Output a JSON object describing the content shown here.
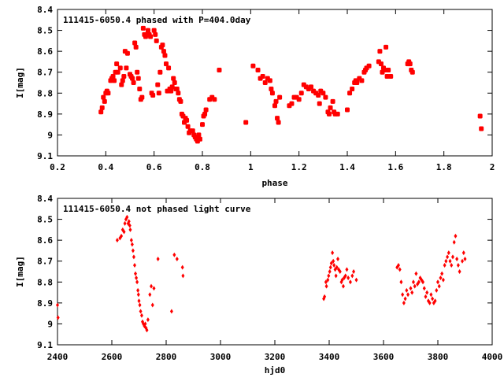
{
  "chart_data": [
    {
      "type": "scatter",
      "title": "111415-6050.4 phased with P=404.0day",
      "xlabel": "phase",
      "ylabel": "I[mag]",
      "xlim": [
        0.2,
        2.0
      ],
      "ylim": [
        8.4,
        9.1
      ],
      "y_inverted": true,
      "grid": false,
      "marker_color": "#ff0000",
      "xticks": [
        "0.2",
        "0.4",
        "0.6",
        "0.8",
        "1",
        "1.2",
        "1.4",
        "1.6",
        "1.8",
        "2"
      ],
      "xtick_values": [
        0.2,
        0.4,
        0.6,
        0.8,
        1.0,
        1.2,
        1.4,
        1.6,
        1.8,
        2.0
      ],
      "yticks": [
        "8.4",
        "8.5",
        "8.6",
        "8.7",
        "8.8",
        "8.9",
        "9",
        "9.1"
      ],
      "ytick_values": [
        8.4,
        8.5,
        8.6,
        8.7,
        8.8,
        8.9,
        9.0,
        9.1
      ],
      "points": [
        [
          0.38,
          8.89
        ],
        [
          0.385,
          8.87
        ],
        [
          0.39,
          8.82
        ],
        [
          0.395,
          8.84
        ],
        [
          0.4,
          8.8
        ],
        [
          0.405,
          8.79
        ],
        [
          0.41,
          8.8
        ],
        [
          0.42,
          8.74
        ],
        [
          0.425,
          8.73
        ],
        [
          0.43,
          8.72
        ],
        [
          0.435,
          8.74
        ],
        [
          0.44,
          8.7
        ],
        [
          0.445,
          8.66
        ],
        [
          0.45,
          8.7
        ],
        [
          0.46,
          8.68
        ],
        [
          0.465,
          8.76
        ],
        [
          0.47,
          8.74
        ],
        [
          0.475,
          8.72
        ],
        [
          0.48,
          8.6
        ],
        [
          0.485,
          8.68
        ],
        [
          0.49,
          8.61
        ],
        [
          0.5,
          8.71
        ],
        [
          0.505,
          8.72
        ],
        [
          0.51,
          8.73
        ],
        [
          0.515,
          8.75
        ],
        [
          0.52,
          8.56
        ],
        [
          0.525,
          8.58
        ],
        [
          0.53,
          8.7
        ],
        [
          0.535,
          8.73
        ],
        [
          0.54,
          8.78
        ],
        [
          0.545,
          8.83
        ],
        [
          0.55,
          8.82
        ],
        [
          0.555,
          8.49
        ],
        [
          0.56,
          8.52
        ],
        [
          0.565,
          8.53
        ],
        [
          0.57,
          8.52
        ],
        [
          0.575,
          8.5
        ],
        [
          0.58,
          8.52
        ],
        [
          0.585,
          8.53
        ],
        [
          0.59,
          8.8
        ],
        [
          0.595,
          8.81
        ],
        [
          0.6,
          8.5
        ],
        [
          0.605,
          8.52
        ],
        [
          0.61,
          8.55
        ],
        [
          0.615,
          8.76
        ],
        [
          0.62,
          8.8
        ],
        [
          0.625,
          8.7
        ],
        [
          0.63,
          8.58
        ],
        [
          0.635,
          8.57
        ],
        [
          0.64,
          8.6
        ],
        [
          0.645,
          8.62
        ],
        [
          0.65,
          8.66
        ],
        [
          0.655,
          8.79
        ],
        [
          0.66,
          8.68
        ],
        [
          0.665,
          8.78
        ],
        [
          0.67,
          8.79
        ],
        [
          0.675,
          8.77
        ],
        [
          0.68,
          8.73
        ],
        [
          0.685,
          8.75
        ],
        [
          0.69,
          8.78
        ],
        [
          0.695,
          8.78
        ],
        [
          0.7,
          8.8
        ],
        [
          0.705,
          8.83
        ],
        [
          0.71,
          8.84
        ],
        [
          0.715,
          8.9
        ],
        [
          0.72,
          8.91
        ],
        [
          0.725,
          8.94
        ],
        [
          0.73,
          8.92
        ],
        [
          0.735,
          8.93
        ],
        [
          0.74,
          8.96
        ],
        [
          0.745,
          8.99
        ],
        [
          0.75,
          8.98
        ],
        [
          0.76,
          8.98
        ],
        [
          0.765,
          9.0
        ],
        [
          0.77,
          9.01
        ],
        [
          0.775,
          9.02
        ],
        [
          0.78,
          9.03
        ],
        [
          0.785,
          9.0
        ],
        [
          0.79,
          9.02
        ],
        [
          0.8,
          8.95
        ],
        [
          0.805,
          8.91
        ],
        [
          0.81,
          8.9
        ],
        [
          0.815,
          8.88
        ],
        [
          0.83,
          8.83
        ],
        [
          0.84,
          8.82
        ],
        [
          0.85,
          8.83
        ],
        [
          0.87,
          8.69
        ],
        [
          0.98,
          8.94
        ],
        [
          1.01,
          8.67
        ],
        [
          1.03,
          8.69
        ],
        [
          1.04,
          8.73
        ],
        [
          1.05,
          8.72
        ],
        [
          1.06,
          8.75
        ],
        [
          1.07,
          8.73
        ],
        [
          1.08,
          8.74
        ],
        [
          1.085,
          8.78
        ],
        [
          1.09,
          8.8
        ],
        [
          1.1,
          8.86
        ],
        [
          1.105,
          8.84
        ],
        [
          1.11,
          8.92
        ],
        [
          1.115,
          8.94
        ],
        [
          1.12,
          8.82
        ],
        [
          1.16,
          8.86
        ],
        [
          1.17,
          8.85
        ],
        [
          1.18,
          8.82
        ],
        [
          1.19,
          8.82
        ],
        [
          1.2,
          8.83
        ],
        [
          1.21,
          8.8
        ],
        [
          1.22,
          8.76
        ],
        [
          1.23,
          8.77
        ],
        [
          1.24,
          8.78
        ],
        [
          1.25,
          8.77
        ],
        [
          1.26,
          8.79
        ],
        [
          1.27,
          8.8
        ],
        [
          1.28,
          8.81
        ],
        [
          1.285,
          8.85
        ],
        [
          1.29,
          8.79
        ],
        [
          1.3,
          8.8
        ],
        [
          1.31,
          8.82
        ],
        [
          1.32,
          8.89
        ],
        [
          1.325,
          8.9
        ],
        [
          1.33,
          8.87
        ],
        [
          1.34,
          8.84
        ],
        [
          1.345,
          8.89
        ],
        [
          1.35,
          8.9
        ],
        [
          1.36,
          8.9
        ],
        [
          1.4,
          8.88
        ],
        [
          1.41,
          8.8
        ],
        [
          1.42,
          8.78
        ],
        [
          1.43,
          8.75
        ],
        [
          1.435,
          8.74
        ],
        [
          1.44,
          8.75
        ],
        [
          1.45,
          8.73
        ],
        [
          1.46,
          8.74
        ],
        [
          1.47,
          8.7
        ],
        [
          1.475,
          8.69
        ],
        [
          1.48,
          8.68
        ],
        [
          1.49,
          8.67
        ],
        [
          1.53,
          8.65
        ],
        [
          1.535,
          8.6
        ],
        [
          1.54,
          8.66
        ],
        [
          1.545,
          8.7
        ],
        [
          1.55,
          8.68
        ],
        [
          1.555,
          8.69
        ],
        [
          1.56,
          8.58
        ],
        [
          1.565,
          8.72
        ],
        [
          1.57,
          8.69
        ],
        [
          1.58,
          8.72
        ],
        [
          1.65,
          8.66
        ],
        [
          1.655,
          8.65
        ],
        [
          1.66,
          8.66
        ],
        [
          1.665,
          8.69
        ],
        [
          1.67,
          8.7
        ],
        [
          1.95,
          8.91
        ],
        [
          1.955,
          8.97
        ]
      ]
    },
    {
      "type": "scatter",
      "title": "111415-6050.4 not phased light curve",
      "xlabel": "hjd0",
      "ylabel": "I[mag]",
      "xlim": [
        2400,
        4000
      ],
      "ylim": [
        8.4,
        9.1
      ],
      "y_inverted": true,
      "grid": false,
      "marker_color": "#ff0000",
      "xticks": [
        "2400",
        "2600",
        "2800",
        "3000",
        "3200",
        "3400",
        "3600",
        "3800",
        "4000"
      ],
      "xtick_values": [
        2400,
        2600,
        2800,
        3000,
        3200,
        3400,
        3600,
        3800,
        4000
      ],
      "yticks": [
        "8.4",
        "8.5",
        "8.6",
        "8.7",
        "8.8",
        "8.9",
        "9",
        "9.1"
      ],
      "ytick_values": [
        8.4,
        8.5,
        8.6,
        8.7,
        8.8,
        8.9,
        9.0,
        9.1
      ],
      "points": [
        [
          2400,
          8.91
        ],
        [
          2402,
          8.97
        ],
        [
          2620,
          8.6
        ],
        [
          2630,
          8.59
        ],
        [
          2635,
          8.58
        ],
        [
          2640,
          8.55
        ],
        [
          2645,
          8.56
        ],
        [
          2648,
          8.52
        ],
        [
          2652,
          8.5
        ],
        [
          2656,
          8.49
        ],
        [
          2660,
          8.52
        ],
        [
          2663,
          8.51
        ],
        [
          2666,
          8.53
        ],
        [
          2668,
          8.55
        ],
        [
          2672,
          8.6
        ],
        [
          2675,
          8.62
        ],
        [
          2678,
          8.65
        ],
        [
          2681,
          8.68
        ],
        [
          2684,
          8.72
        ],
        [
          2687,
          8.76
        ],
        [
          2690,
          8.78
        ],
        [
          2693,
          8.8
        ],
        [
          2696,
          8.84
        ],
        [
          2698,
          8.86
        ],
        [
          2700,
          8.89
        ],
        [
          2703,
          8.91
        ],
        [
          2706,
          8.94
        ],
        [
          2710,
          8.96
        ],
        [
          2713,
          8.99
        ],
        [
          2716,
          9.0
        ],
        [
          2720,
          9.01
        ],
        [
          2723,
          9.0
        ],
        [
          2726,
          9.02
        ],
        [
          2729,
          9.03
        ],
        [
          2733,
          8.98
        ],
        [
          2740,
          8.86
        ],
        [
          2745,
          8.82
        ],
        [
          2750,
          8.91
        ],
        [
          2755,
          8.83
        ],
        [
          2770,
          8.69
        ],
        [
          2820,
          8.94
        ],
        [
          2830,
          8.67
        ],
        [
          2840,
          8.69
        ],
        [
          2860,
          8.73
        ],
        [
          2862,
          8.77
        ],
        [
          3380,
          8.88
        ],
        [
          3383,
          8.87
        ],
        [
          3388,
          8.8
        ],
        [
          3390,
          8.82
        ],
        [
          3395,
          8.79
        ],
        [
          3398,
          8.77
        ],
        [
          3402,
          8.75
        ],
        [
          3405,
          8.73
        ],
        [
          3408,
          8.71
        ],
        [
          3412,
          8.66
        ],
        [
          3415,
          8.7
        ],
        [
          3418,
          8.72
        ],
        [
          3422,
          8.74
        ],
        [
          3425,
          8.77
        ],
        [
          3428,
          8.73
        ],
        [
          3432,
          8.69
        ],
        [
          3435,
          8.74
        ],
        [
          3440,
          8.75
        ],
        [
          3445,
          8.8
        ],
        [
          3448,
          8.79
        ],
        [
          3452,
          8.82
        ],
        [
          3455,
          8.78
        ],
        [
          3460,
          8.77
        ],
        [
          3465,
          8.74
        ],
        [
          3470,
          8.78
        ],
        [
          3478,
          8.8
        ],
        [
          3485,
          8.77
        ],
        [
          3490,
          8.75
        ],
        [
          3500,
          8.79
        ],
        [
          3650,
          8.73
        ],
        [
          3655,
          8.72
        ],
        [
          3660,
          8.74
        ],
        [
          3665,
          8.8
        ],
        [
          3670,
          8.86
        ],
        [
          3675,
          8.9
        ],
        [
          3680,
          8.88
        ],
        [
          3685,
          8.84
        ],
        [
          3690,
          8.86
        ],
        [
          3700,
          8.83
        ],
        [
          3705,
          8.85
        ],
        [
          3710,
          8.8
        ],
        [
          3715,
          8.82
        ],
        [
          3720,
          8.76
        ],
        [
          3725,
          8.81
        ],
        [
          3730,
          8.8
        ],
        [
          3735,
          8.78
        ],
        [
          3740,
          8.79
        ],
        [
          3745,
          8.8
        ],
        [
          3750,
          8.83
        ],
        [
          3755,
          8.87
        ],
        [
          3760,
          8.85
        ],
        [
          3765,
          8.89
        ],
        [
          3770,
          8.9
        ],
        [
          3775,
          8.86
        ],
        [
          3780,
          8.88
        ],
        [
          3785,
          8.9
        ],
        [
          3790,
          8.89
        ],
        [
          3795,
          8.84
        ],
        [
          3800,
          8.8
        ],
        [
          3805,
          8.82
        ],
        [
          3810,
          8.78
        ],
        [
          3815,
          8.76
        ],
        [
          3820,
          8.79
        ],
        [
          3825,
          8.72
        ],
        [
          3830,
          8.7
        ],
        [
          3835,
          8.68
        ],
        [
          3840,
          8.66
        ],
        [
          3845,
          8.7
        ],
        [
          3850,
          8.72
        ],
        [
          3855,
          8.68
        ],
        [
          3860,
          8.61
        ],
        [
          3865,
          8.58
        ],
        [
          3870,
          8.69
        ],
        [
          3875,
          8.72
        ],
        [
          3880,
          8.75
        ],
        [
          3890,
          8.7
        ],
        [
          3895,
          8.66
        ],
        [
          3900,
          8.69
        ]
      ]
    }
  ]
}
